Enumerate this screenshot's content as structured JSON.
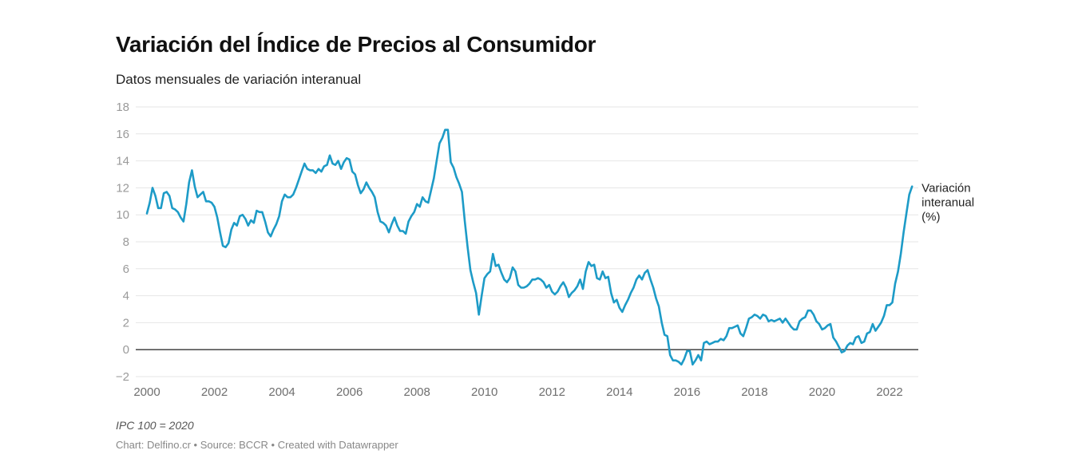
{
  "header": {
    "title": "Variación del Índice de Precios al Consumidor",
    "subtitle": "Datos mensuales de variación interanual"
  },
  "footer": {
    "note": "IPC 100 = 2020",
    "credits": "Chart: Delfino.cr • Source: BCCR • Created with Datawrapper"
  },
  "colors": {
    "series": "#1d9bc7",
    "grid": "#e6e6e6",
    "zero_line": "#333333"
  },
  "chart_data": {
    "type": "line",
    "title": "Variación del Índice de Precios al Consumidor",
    "subtitle": "Datos mensuales de variación interanual",
    "xlabel": "",
    "ylabel": "",
    "x_start": "2000-01",
    "x_end": "2022-07",
    "frequency": "monthly",
    "xlim": [
      2000,
      2022.6
    ],
    "ylim": [
      -2,
      18
    ],
    "grid": true,
    "yticks": [
      -2,
      0,
      2,
      4,
      6,
      8,
      10,
      12,
      14,
      16,
      18
    ],
    "ytick_labels": [
      "−2",
      "0",
      "2",
      "4",
      "6",
      "8",
      "10",
      "12",
      "14",
      "16",
      "18"
    ],
    "xticks": [
      2000,
      2002,
      2004,
      2006,
      2008,
      2010,
      2012,
      2014,
      2016,
      2018,
      2020,
      2022
    ],
    "xtick_labels": [
      "2000",
      "2002",
      "2004",
      "2006",
      "2008",
      "2010",
      "2012",
      "2014",
      "2016",
      "2018",
      "2020",
      "2022"
    ],
    "legend": "direct-label-right",
    "series": [
      {
        "name": "Variación interanual (%)",
        "label_lines": [
          "Variación",
          "interanual",
          "(%)"
        ],
        "values": [
          10.1,
          10.9,
          12.0,
          11.4,
          10.5,
          10.5,
          11.6,
          11.7,
          11.4,
          10.5,
          10.4,
          10.2,
          9.8,
          9.5,
          10.8,
          12.4,
          13.3,
          12.1,
          11.3,
          11.5,
          11.7,
          11.0,
          11.0,
          10.9,
          10.6,
          9.8,
          8.7,
          7.7,
          7.6,
          7.9,
          8.9,
          9.4,
          9.2,
          9.9,
          10.0,
          9.7,
          9.2,
          9.6,
          9.4,
          10.3,
          10.2,
          10.2,
          9.5,
          8.7,
          8.4,
          8.9,
          9.3,
          9.9,
          11.0,
          11.5,
          11.3,
          11.3,
          11.5,
          12.0,
          12.6,
          13.2,
          13.8,
          13.4,
          13.3,
          13.3,
          13.1,
          13.4,
          13.2,
          13.6,
          13.7,
          14.4,
          13.8,
          13.7,
          14.0,
          13.4,
          13.9,
          14.2,
          14.1,
          13.2,
          13.0,
          12.2,
          11.6,
          11.9,
          12.4,
          12.0,
          11.7,
          11.3,
          10.2,
          9.5,
          9.4,
          9.2,
          8.7,
          9.3,
          9.8,
          9.2,
          8.8,
          8.8,
          8.6,
          9.5,
          9.9,
          10.2,
          10.8,
          10.6,
          11.3,
          11.0,
          10.9,
          11.8,
          12.7,
          14.0,
          15.3,
          15.7,
          16.3,
          16.3,
          13.9,
          13.5,
          12.8,
          12.3,
          11.7,
          9.5,
          7.6,
          5.9,
          5.0,
          4.2,
          2.6,
          4.0,
          5.3,
          5.6,
          5.8,
          7.1,
          6.2,
          6.3,
          5.7,
          5.2,
          5.0,
          5.3,
          6.1,
          5.8,
          4.8,
          4.6,
          4.6,
          4.7,
          4.9,
          5.2,
          5.2,
          5.3,
          5.2,
          5.0,
          4.6,
          4.8,
          4.3,
          4.1,
          4.3,
          4.7,
          5.0,
          4.6,
          3.9,
          4.2,
          4.4,
          4.7,
          5.2,
          4.5,
          5.8,
          6.5,
          6.2,
          6.3,
          5.3,
          5.2,
          5.8,
          5.3,
          5.4,
          4.2,
          3.5,
          3.7,
          3.1,
          2.8,
          3.3,
          3.7,
          4.2,
          4.6,
          5.2,
          5.5,
          5.2,
          5.7,
          5.9,
          5.2,
          4.6,
          3.8,
          3.2,
          2.0,
          1.1,
          1.0,
          -0.4,
          -0.8,
          -0.8,
          -0.9,
          -1.1,
          -0.7,
          -0.1,
          -0.1,
          -1.1,
          -0.8,
          -0.4,
          -0.8,
          0.5,
          0.6,
          0.4,
          0.5,
          0.6,
          0.6,
          0.8,
          0.7,
          1.0,
          1.6,
          1.6,
          1.7,
          1.8,
          1.2,
          1.0,
          1.6,
          2.3,
          2.4,
          2.6,
          2.5,
          2.3,
          2.6,
          2.5,
          2.1,
          2.2,
          2.1,
          2.2,
          2.3,
          2.0,
          2.3,
          2.0,
          1.7,
          1.5,
          1.5,
          2.1,
          2.3,
          2.4,
          2.9,
          2.9,
          2.6,
          2.1,
          1.9,
          1.5,
          1.6,
          1.8,
          1.9,
          0.9,
          0.6,
          0.2,
          -0.2,
          -0.1,
          0.3,
          0.5,
          0.4,
          0.9,
          1.0,
          0.5,
          0.6,
          1.2,
          1.3,
          1.9,
          1.4,
          1.7,
          2.0,
          2.5,
          3.3,
          3.3,
          3.5,
          4.9,
          5.8,
          7.1,
          8.7,
          10.1,
          11.5,
          12.1
        ]
      }
    ]
  }
}
